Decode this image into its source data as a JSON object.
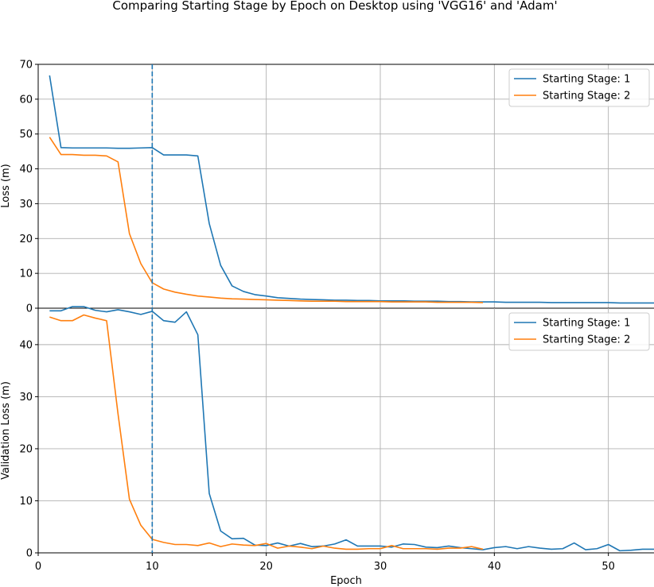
{
  "chart_data": {
    "type": "line",
    "title": "Comparing Starting Stage by Epoch on Desktop using 'VGG16' and 'Adam'",
    "xlabel": "Epoch",
    "xlim": [
      0,
      54
    ],
    "x_ticks": [
      0,
      10,
      20,
      30,
      40,
      50
    ],
    "vline_x": 10,
    "grid": true,
    "legend_position": "top-right",
    "colors": {
      "series1": "#1f77b4",
      "series2": "#ff7f0e",
      "vline": "#1f77b4"
    },
    "panels": [
      {
        "ylabel": "Loss (m)",
        "ylim": [
          0,
          70
        ],
        "y_ticks": [
          0,
          10,
          20,
          30,
          40,
          50,
          60,
          70
        ],
        "series": [
          {
            "name": "Starting Stage: 1",
            "x": [
              1,
              2,
              3,
              4,
              5,
              6,
              7,
              8,
              9,
              10,
              11,
              12,
              13,
              14,
              15,
              16,
              17,
              18,
              19,
              20,
              21,
              22,
              23,
              24,
              25,
              26,
              27,
              28,
              29,
              30,
              31,
              32,
              33,
              34,
              35,
              36,
              37,
              38,
              39,
              40,
              41,
              42,
              43,
              44,
              45,
              46,
              47,
              48,
              49,
              50,
              51,
              52,
              53,
              54
            ],
            "values": [
              66.8,
              46.1,
              46.0,
              46.0,
              46.0,
              46.0,
              45.9,
              45.9,
              46.0,
              46.1,
              44.0,
              44.0,
              44.0,
              43.7,
              24.3,
              12.3,
              6.4,
              4.8,
              3.9,
              3.5,
              3.0,
              2.8,
              2.6,
              2.5,
              2.4,
              2.3,
              2.3,
              2.2,
              2.2,
              2.1,
              2.1,
              2.1,
              2.0,
              2.0,
              2.0,
              1.9,
              1.9,
              1.8,
              1.8,
              1.8,
              1.7,
              1.7,
              1.7,
              1.7,
              1.6,
              1.6,
              1.6,
              1.6,
              1.6,
              1.6,
              1.5,
              1.5,
              1.5,
              1.5
            ]
          },
          {
            "name": "Starting Stage: 2",
            "x": [
              1,
              2,
              3,
              4,
              5,
              6,
              7,
              8,
              9,
              10,
              11,
              12,
              13,
              14,
              15,
              16,
              17,
              18,
              19,
              20,
              21,
              22,
              23,
              24,
              25,
              26,
              27,
              28,
              29,
              30,
              31,
              32,
              33,
              34,
              35,
              36,
              37,
              38,
              39
            ],
            "values": [
              49.1,
              44.1,
              44.1,
              43.9,
              43.9,
              43.7,
              42.0,
              21.4,
              12.8,
              7.3,
              5.5,
              4.6,
              4.0,
              3.5,
              3.2,
              2.9,
              2.7,
              2.6,
              2.5,
              2.4,
              2.3,
              2.2,
              2.1,
              2.0,
              2.0,
              2.0,
              1.9,
              1.9,
              1.9,
              1.9,
              1.8,
              1.8,
              1.8,
              1.8,
              1.7,
              1.7,
              1.7,
              1.7,
              1.6
            ]
          }
        ]
      },
      {
        "ylabel": "Validation Loss (m)",
        "ylim": [
          0,
          47
        ],
        "y_ticks": [
          0,
          10,
          20,
          30,
          40
        ],
        "series": [
          {
            "name": "Starting Stage: 1",
            "x": [
              1,
              2,
              3,
              4,
              5,
              6,
              7,
              8,
              9,
              10,
              11,
              12,
              13,
              14,
              15,
              16,
              17,
              18,
              19,
              20,
              21,
              22,
              23,
              24,
              25,
              26,
              27,
              28,
              29,
              30,
              31,
              32,
              33,
              34,
              35,
              36,
              37,
              38,
              39,
              40,
              41,
              42,
              43,
              44,
              45,
              46,
              47,
              48,
              49,
              50,
              51,
              52,
              53,
              54
            ],
            "values": [
              46.5,
              46.5,
              47.3,
              47.3,
              46.6,
              46.3,
              46.7,
              46.3,
              45.8,
              46.4,
              44.6,
              44.3,
              46.3,
              41.9,
              11.4,
              4.2,
              2.7,
              2.8,
              1.5,
              1.4,
              1.9,
              1.3,
              1.8,
              1.2,
              1.3,
              1.7,
              2.5,
              1.3,
              1.3,
              1.3,
              1.1,
              1.7,
              1.6,
              1.1,
              1.0,
              1.3,
              1.0,
              0.8,
              0.6,
              1.0,
              1.2,
              0.8,
              1.2,
              0.9,
              0.7,
              0.8,
              1.9,
              0.6,
              0.8,
              1.6,
              0.4,
              0.5,
              0.7,
              0.7
            ]
          },
          {
            "name": "Starting Stage: 2",
            "x": [
              1,
              2,
              3,
              4,
              5,
              6,
              7,
              8,
              9,
              10,
              11,
              12,
              13,
              14,
              15,
              16,
              17,
              18,
              19,
              20,
              21,
              22,
              23,
              24,
              25,
              26,
              27,
              28,
              29,
              30,
              31,
              32,
              33,
              34,
              35,
              36,
              37,
              38,
              39
            ],
            "values": [
              45.3,
              44.6,
              44.6,
              45.7,
              45.1,
              44.6,
              26.7,
              10.3,
              5.3,
              2.6,
              2.0,
              1.6,
              1.6,
              1.4,
              1.9,
              1.2,
              1.7,
              1.5,
              1.4,
              1.8,
              0.9,
              1.3,
              1.1,
              0.8,
              1.3,
              0.9,
              0.7,
              0.7,
              0.8,
              0.8,
              1.4,
              0.8,
              0.8,
              0.8,
              0.7,
              0.9,
              0.9,
              1.2,
              0.7
            ]
          }
        ]
      }
    ]
  }
}
